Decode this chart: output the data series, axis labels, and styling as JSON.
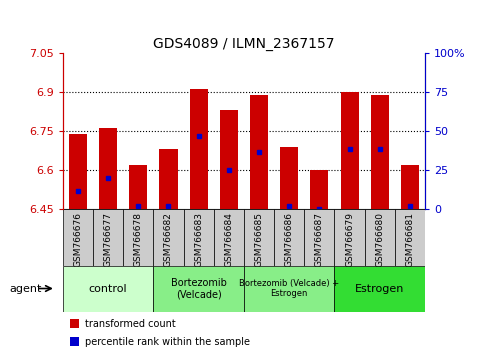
{
  "title": "GDS4089 / ILMN_2367157",
  "samples": [
    "GSM766676",
    "GSM766677",
    "GSM766678",
    "GSM766682",
    "GSM766683",
    "GSM766684",
    "GSM766685",
    "GSM766686",
    "GSM766687",
    "GSM766679",
    "GSM766680",
    "GSM766681"
  ],
  "bar_values": [
    6.74,
    6.76,
    6.62,
    6.68,
    6.91,
    6.83,
    6.89,
    6.69,
    6.6,
    6.9,
    6.89,
    6.62
  ],
  "blue_dot_values": [
    6.52,
    6.57,
    6.46,
    6.46,
    6.73,
    6.6,
    6.67,
    6.46,
    6.45,
    6.68,
    6.68,
    6.46
  ],
  "ymin": 6.45,
  "ymax": 7.05,
  "yticks": [
    6.45,
    6.6,
    6.75,
    6.9,
    7.05
  ],
  "ytick_labels": [
    "6.45",
    "6.6",
    "6.75",
    "6.9",
    "7.05"
  ],
  "right_yticks": [
    0,
    25,
    50,
    75,
    100
  ],
  "right_ytick_labels": [
    "0",
    "25",
    "50",
    "75",
    "100%"
  ],
  "bar_color": "#CC0000",
  "dot_color": "#0000CC",
  "bar_width": 0.6,
  "groups": [
    {
      "label": "control",
      "start": 0,
      "end": 3,
      "color": "#ccffcc",
      "fontsize": 8
    },
    {
      "label": "Bortezomib\n(Velcade)",
      "start": 3,
      "end": 6,
      "color": "#88ee88",
      "fontsize": 7
    },
    {
      "label": "Bortezomib (Velcade) +\nEstrogen",
      "start": 6,
      "end": 9,
      "color": "#88ee88",
      "fontsize": 6
    },
    {
      "label": "Estrogen",
      "start": 9,
      "end": 12,
      "color": "#33dd33",
      "fontsize": 8
    }
  ],
  "legend_items": [
    {
      "color": "#CC0000",
      "label": "transformed count"
    },
    {
      "color": "#0000CC",
      "label": "percentile rank within the sample"
    }
  ],
  "left_axis_color": "#CC0000",
  "right_axis_color": "#0000CC",
  "sample_box_color": "#cccccc",
  "fig_width": 4.83,
  "fig_height": 3.54,
  "dpi": 100
}
